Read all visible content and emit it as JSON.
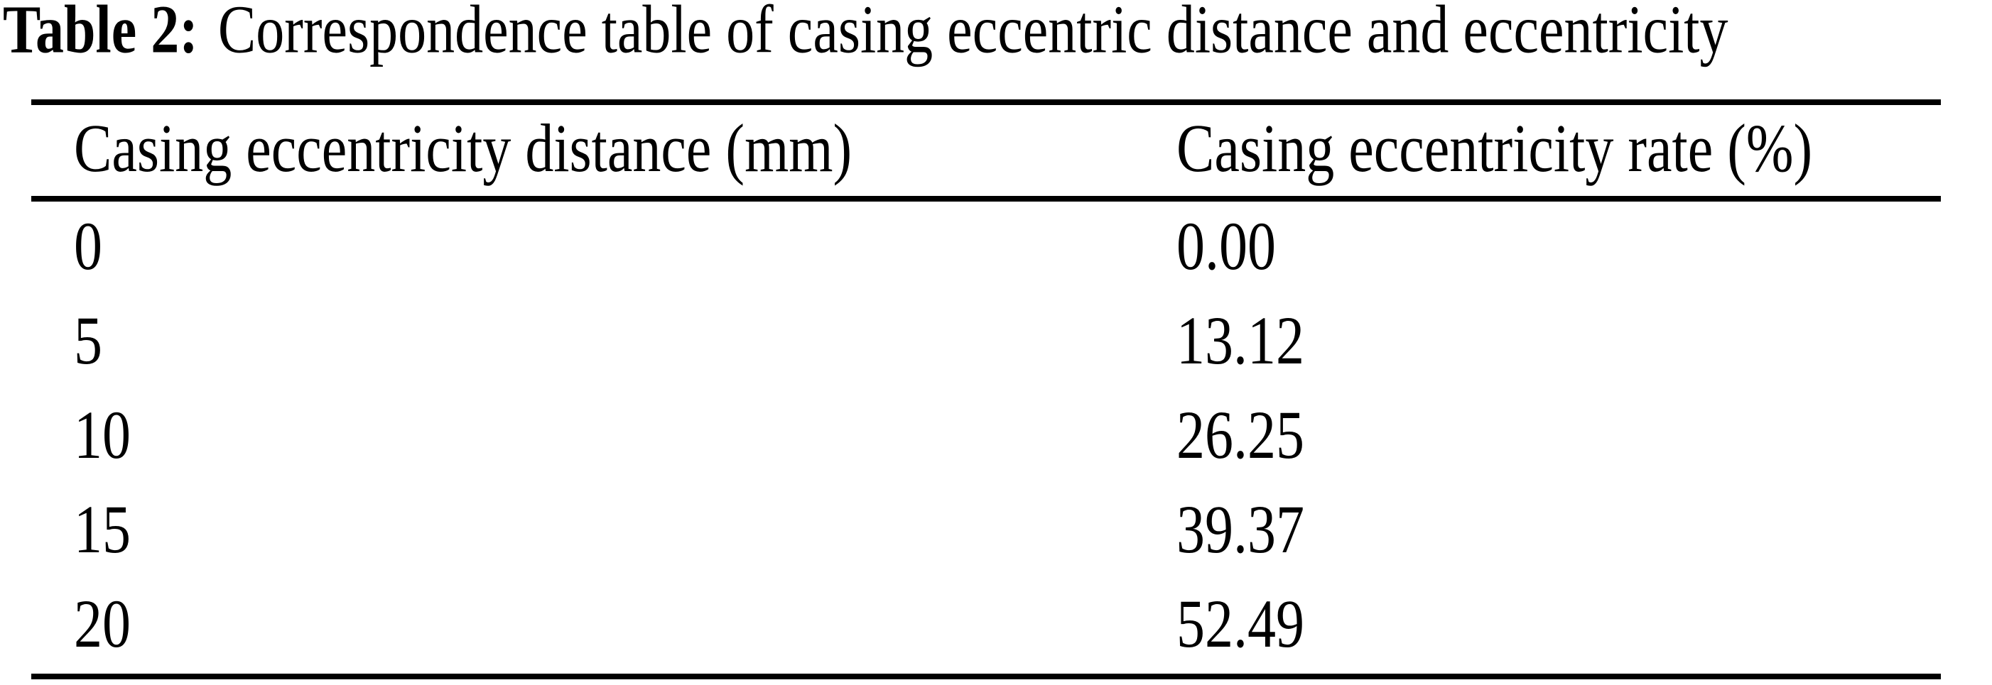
{
  "caption": {
    "label": "Table 2:",
    "text": "Correspondence table of casing eccentric distance and eccentricity"
  },
  "table": {
    "columns": [
      "Casing eccentricity distance (mm)",
      "Casing eccentricity rate (%)"
    ],
    "rows": [
      {
        "distance": "0",
        "rate": "0.00"
      },
      {
        "distance": "5",
        "rate": "13.12"
      },
      {
        "distance": "10",
        "rate": "26.25"
      },
      {
        "distance": "15",
        "rate": "39.37"
      },
      {
        "distance": "20",
        "rate": "52.49"
      }
    ]
  },
  "colors": {
    "text": "#000000",
    "background": "#ffffff",
    "rule": "#000000"
  }
}
